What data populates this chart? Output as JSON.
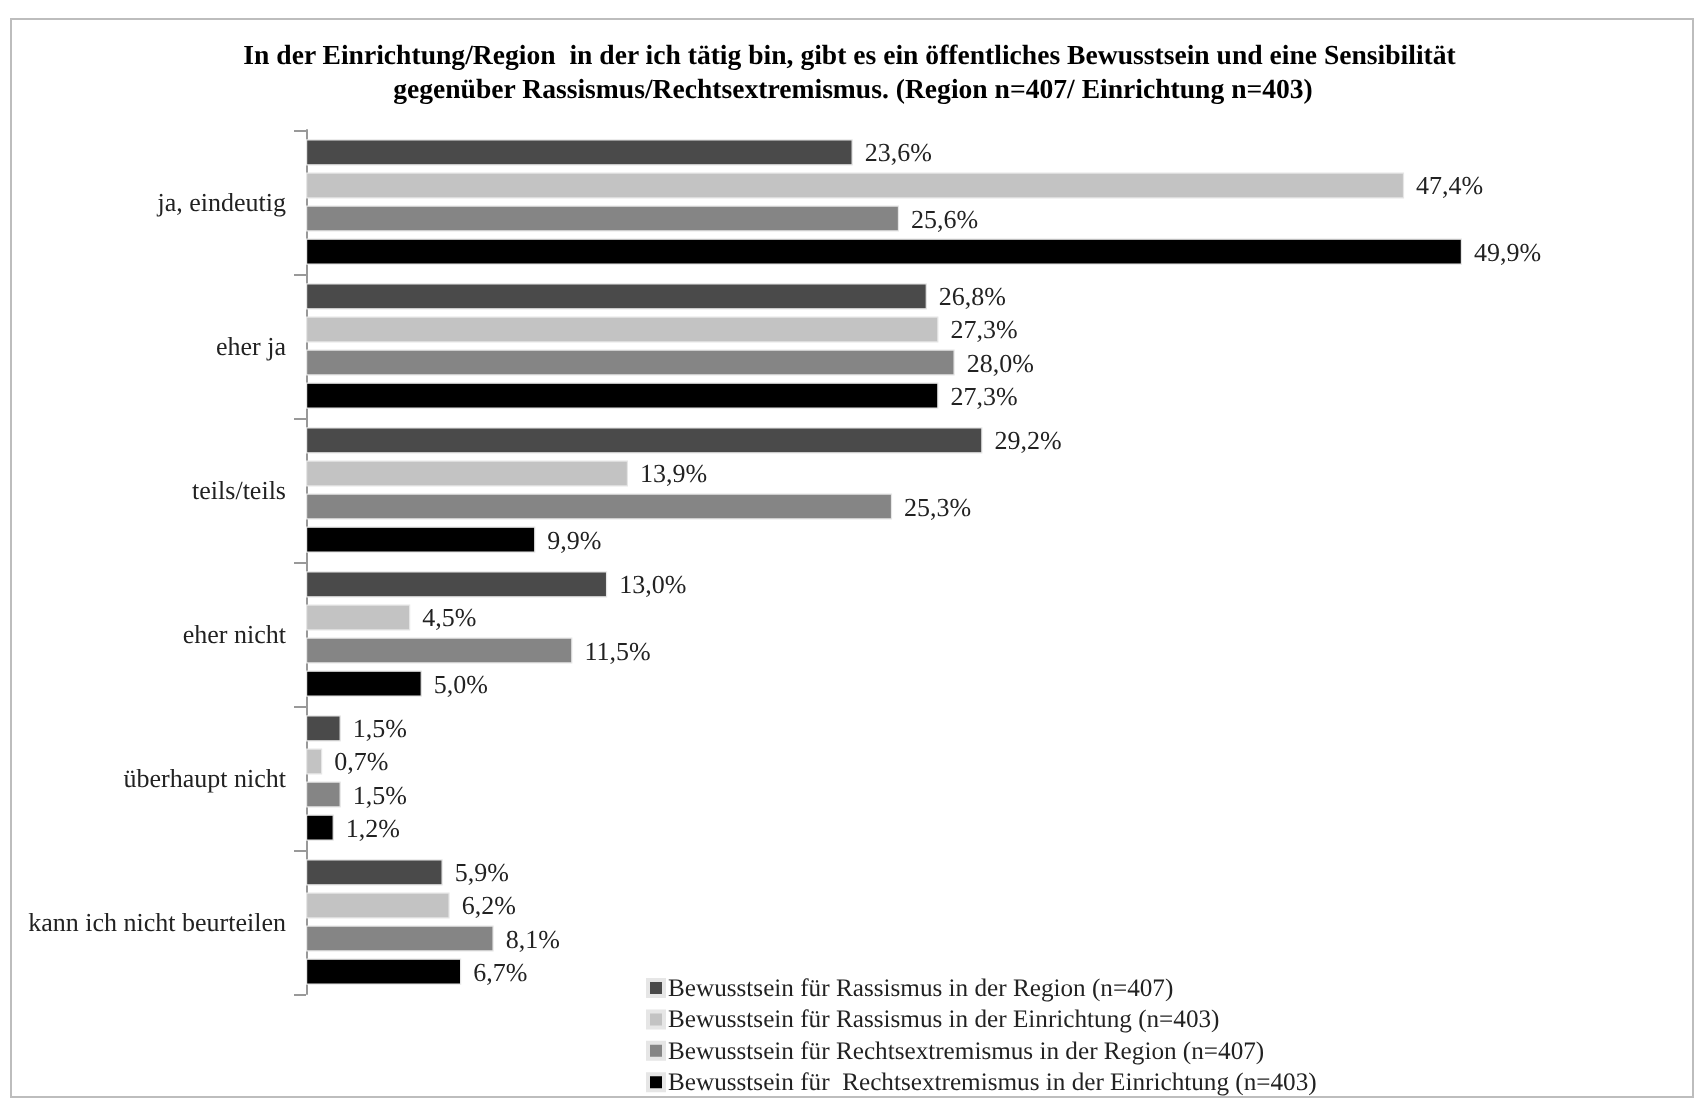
{
  "chart_data": {
    "type": "bar",
    "orientation": "horizontal",
    "title": "In der Einrichtung/Region  in der ich tätig bin, gibt es ein öffentliches Bewusstsein und eine Sensibilität gegenüber Rassismus/Rechtsextremismus. (Region n=407/ Einrichtung n=403)",
    "categories": [
      "ja, eindeutig",
      "eher ja",
      "teils/teils",
      "eher nicht",
      "überhaupt nicht",
      "kann ich nicht beurteilen"
    ],
    "series": [
      {
        "name": "Bewusstsein für Rassismus in der Region (n=407)",
        "color": "#4a4a4a",
        "values": [
          23.6,
          26.8,
          29.2,
          13.0,
          1.5,
          5.9
        ],
        "value_labels": [
          "23,6%",
          "26,8%",
          "29,2%",
          "13,0%",
          "1,5%",
          "5,9%"
        ]
      },
      {
        "name": "Bewusstsein für Rassismus in der Einrichtung (n=403)",
        "color": "#c3c3c3",
        "values": [
          47.4,
          27.3,
          13.9,
          4.5,
          0.7,
          6.2
        ],
        "value_labels": [
          "47,4%",
          "27,3%",
          "13,9%",
          "4,5%",
          "0,7%",
          "6,2%"
        ]
      },
      {
        "name": "Bewusstsein für Rechtsextremismus in der Region (n=407)",
        "color": "#858585",
        "values": [
          25.6,
          28.0,
          25.3,
          11.5,
          1.5,
          8.1
        ],
        "value_labels": [
          "25,6%",
          "28,0%",
          "25,3%",
          "11,5%",
          "1,5%",
          "8,1%"
        ]
      },
      {
        "name": "Bewusstsein für  Rechtsextremismus in der Einrichtung (n=403)",
        "color": "#000000",
        "values": [
          49.9,
          27.3,
          9.9,
          5.0,
          1.2,
          6.7
        ],
        "value_labels": [
          "49,9%",
          "27,3%",
          "9,9%",
          "5,0%",
          "1,2%",
          "6,7%"
        ]
      }
    ],
    "legend": "bottom"
  }
}
